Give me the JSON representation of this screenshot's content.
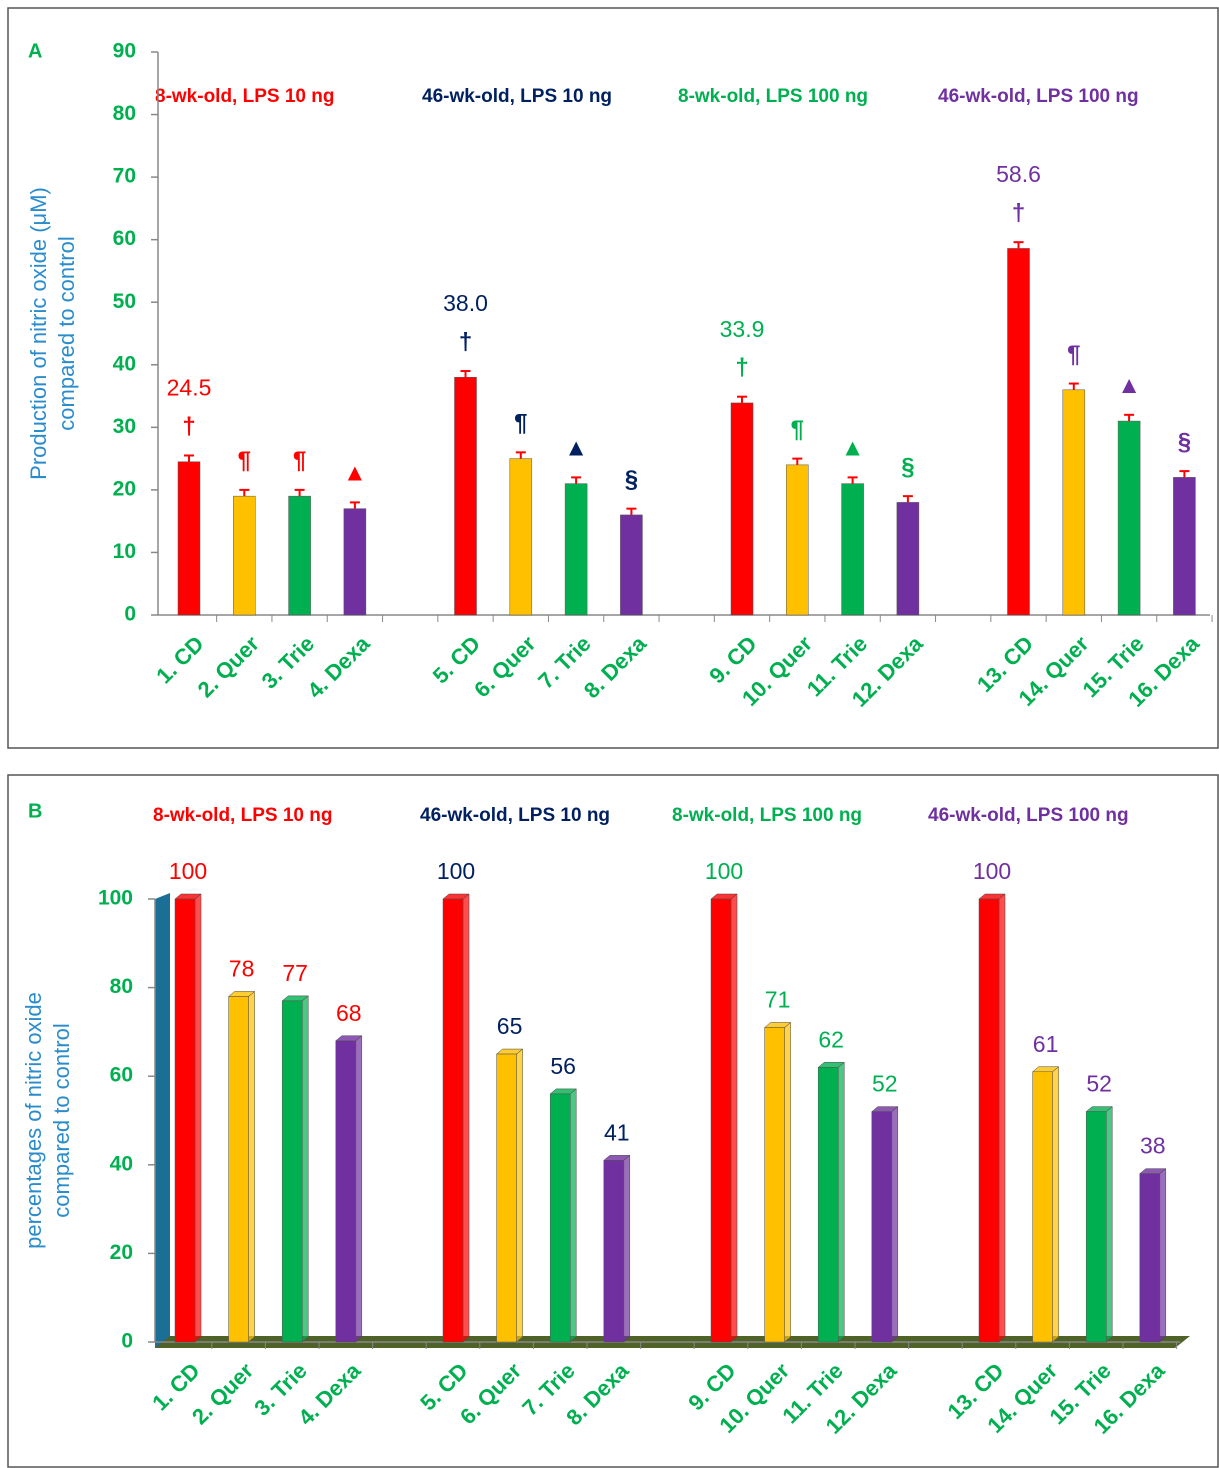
{
  "chart_data": [
    {
      "type": "bar",
      "panel_label": "A",
      "legend": [
        {
          "name": "8-wk-old, LPS 10 ng",
          "color": "#ff0000"
        },
        {
          "name": "46-wk-old, LPS 10 ng",
          "color": "#002060"
        },
        {
          "name": "8-wk-old, LPS 100 ng",
          "color": "#00b050"
        },
        {
          "name": "46-wk-old, LPS 100 ng",
          "color": "#7030a0"
        }
      ],
      "y_label": [
        "Production of nitric oxide (μM)",
        "compared to control"
      ],
      "categories": [
        "1. CD",
        "2. Quer",
        "3. Trie",
        "4. Dexa",
        null,
        "5. CD",
        "6. Quer",
        "7. Trie",
        "8. Dexa",
        null,
        "9. CD",
        "10. Quer",
        "11. Trie",
        "12. Dexa",
        null,
        "13. CD",
        "14. Quer",
        "15. Trie",
        "16. Dexa"
      ],
      "values": [
        24.5,
        19,
        19,
        17,
        null,
        38.0,
        25,
        21,
        16,
        null,
        33.9,
        24,
        21,
        18,
        null,
        58.6,
        36,
        31,
        22
      ],
      "value_labels": [
        "24.5",
        null,
        null,
        null,
        null,
        "38.0",
        null,
        null,
        null,
        null,
        "33.9",
        null,
        null,
        null,
        null,
        "58.6",
        null,
        null,
        null
      ],
      "errors": [
        1,
        1,
        1,
        1,
        null,
        1,
        1,
        1,
        1,
        null,
        1,
        1,
        1,
        1,
        null,
        1,
        1,
        1,
        1
      ],
      "symbols": [
        "†",
        "¶",
        "¶",
        "▲",
        null,
        "†",
        "¶",
        "▲",
        "§",
        null,
        "†",
        "¶",
        "▲",
        "§",
        null,
        "†",
        "¶",
        "▲",
        "§"
      ],
      "colors": [
        "#ff0000",
        "#ffc000",
        "#00b050",
        "#7030a0",
        null,
        "#ff0000",
        "#ffc000",
        "#00b050",
        "#7030a0",
        null,
        "#ff0000",
        "#ffc000",
        "#00b050",
        "#7030a0",
        null,
        "#ff0000",
        "#ffc000",
        "#00b050",
        "#7030a0"
      ],
      "label_colors": [
        "#ff0000",
        "#ff0000",
        "#ff0000",
        "#ff0000",
        null,
        "#002060",
        "#002060",
        "#002060",
        "#002060",
        null,
        "#00b050",
        "#00b050",
        "#00b050",
        "#00b050",
        null,
        "#7030a0",
        "#7030a0",
        "#7030a0",
        "#7030a0"
      ],
      "ylim": [
        0,
        90
      ],
      "yticks": [
        0,
        10,
        20,
        30,
        40,
        50,
        60,
        70,
        80,
        90
      ]
    },
    {
      "type": "bar",
      "panel_label": "B",
      "legend": [
        {
          "name": "8-wk-old, LPS 10 ng",
          "color": "#ff0000"
        },
        {
          "name": "46-wk-old, LPS 10 ng",
          "color": "#002060"
        },
        {
          "name": "8-wk-old, LPS 100 ng",
          "color": "#00b050"
        },
        {
          "name": "46-wk-old, LPS 100 ng",
          "color": "#7030a0"
        }
      ],
      "y_label": [
        "percentages of nitric oxide",
        "compared to control"
      ],
      "categories": [
        "1. CD",
        "2. Quer",
        "3. Trie",
        "4. Dexa",
        null,
        "5. CD",
        "6. Quer",
        "7. Trie",
        "8. Dexa",
        null,
        "9. CD",
        "10. Quer",
        "11. Trie",
        "12. Dexa",
        null,
        "13. CD",
        "14. Quer",
        "15. Trie",
        "16. Dexa"
      ],
      "values": [
        100,
        78,
        77,
        68,
        null,
        100,
        65,
        56,
        41,
        null,
        100,
        71,
        62,
        52,
        null,
        100,
        61,
        52,
        38
      ],
      "colors": [
        "#ff0000",
        "#ffc000",
        "#00b050",
        "#7030a0",
        null,
        "#ff0000",
        "#ffc000",
        "#00b050",
        "#7030a0",
        null,
        "#ff0000",
        "#ffc000",
        "#00b050",
        "#7030a0",
        null,
        "#ff0000",
        "#ffc000",
        "#00b050",
        "#7030a0"
      ],
      "label_colors": [
        "#ff0000",
        "#ff0000",
        "#ff0000",
        "#ff0000",
        null,
        "#002060",
        "#002060",
        "#002060",
        "#002060",
        null,
        "#00b050",
        "#00b050",
        "#00b050",
        "#00b050",
        null,
        "#7030a0",
        "#7030a0",
        "#7030a0",
        "#7030a0"
      ],
      "ylim": [
        0,
        100
      ],
      "yticks": [
        0,
        20,
        40,
        60,
        80,
        100
      ]
    }
  ]
}
